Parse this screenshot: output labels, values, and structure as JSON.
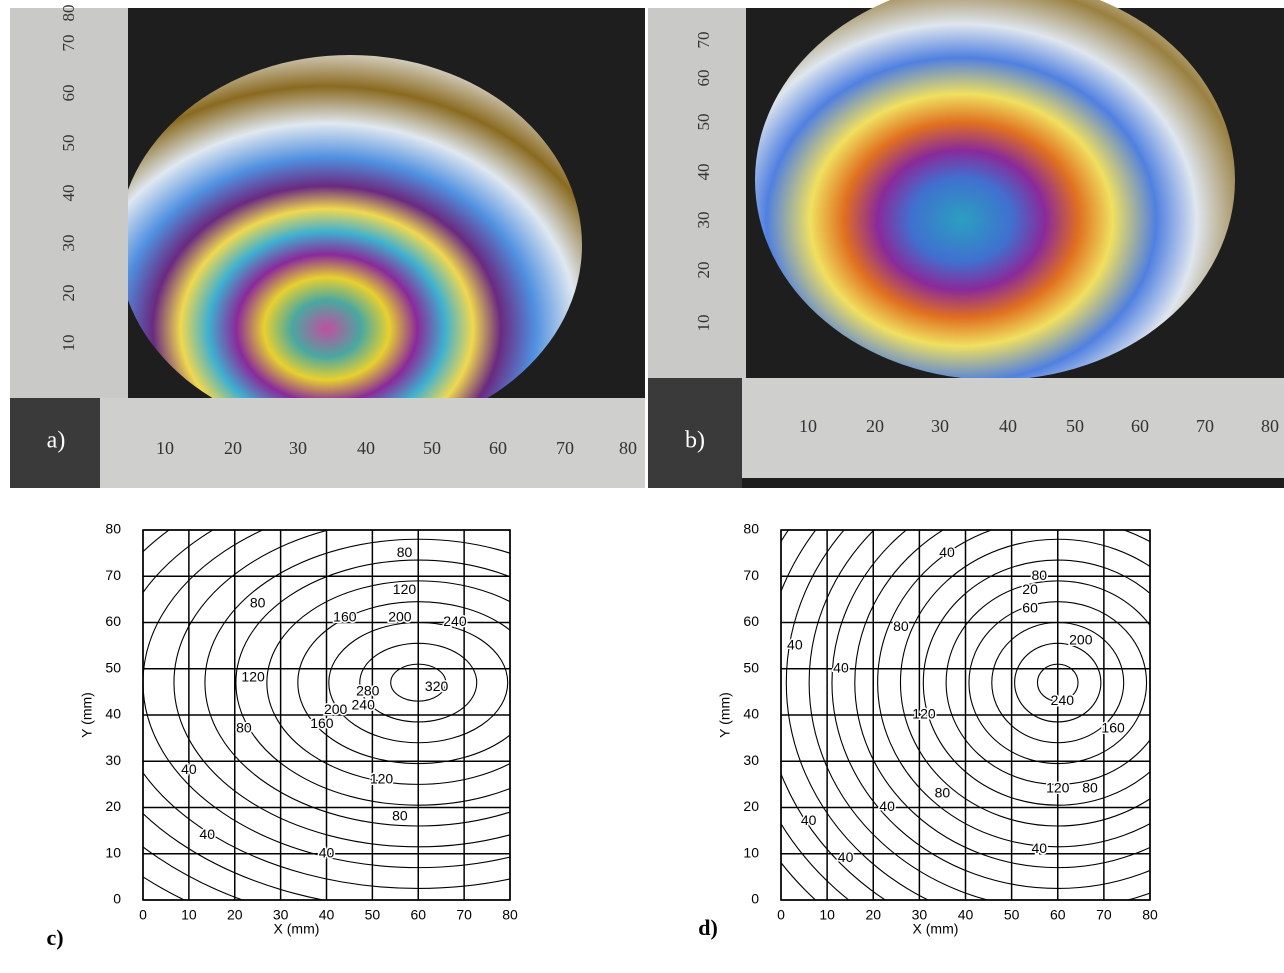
{
  "photos": [
    {
      "label": "a)",
      "ruler_left": [
        "10",
        "20",
        "30",
        "40",
        "50",
        "60",
        "70",
        "80"
      ],
      "ruler_bottom": [
        "10",
        "20",
        "30",
        "40",
        "50",
        "60",
        "70",
        "80"
      ]
    },
    {
      "label": "b)",
      "ruler_left": [
        "10",
        "20",
        "30",
        "40",
        "50",
        "60",
        "70"
      ],
      "ruler_bottom": [
        "10",
        "20",
        "30",
        "40",
        "50",
        "60",
        "70",
        "80"
      ]
    }
  ],
  "plots": [
    {
      "label": "c)",
      "x_label": "X (mm)",
      "y_label": "Y (mm)",
      "xlim": [
        0,
        80
      ],
      "ylim": [
        0,
        80
      ],
      "xticks": [
        0,
        10,
        20,
        30,
        40,
        50,
        60,
        70,
        80
      ],
      "yticks": [
        0,
        10,
        20,
        30,
        40,
        50,
        60,
        70,
        80
      ],
      "contour_labels": [
        80,
        120,
        80,
        160,
        200,
        240,
        120,
        280,
        320,
        200,
        240,
        160,
        80,
        40,
        120,
        80,
        40,
        40
      ]
    },
    {
      "label": "d)",
      "x_label": "X (mm)",
      "y_label": "Y (mm)",
      "xlim": [
        0,
        80
      ],
      "ylim": [
        0,
        80
      ],
      "xticks": [
        0,
        10,
        20,
        30,
        40,
        50,
        60,
        70,
        80
      ],
      "yticks": [
        0,
        10,
        20,
        30,
        40,
        50,
        60,
        70,
        80
      ],
      "contour_labels": [
        40,
        80,
        20,
        60,
        200,
        80,
        40,
        40,
        240,
        120,
        160,
        80,
        120,
        80,
        40,
        40,
        40,
        40
      ]
    }
  ]
}
